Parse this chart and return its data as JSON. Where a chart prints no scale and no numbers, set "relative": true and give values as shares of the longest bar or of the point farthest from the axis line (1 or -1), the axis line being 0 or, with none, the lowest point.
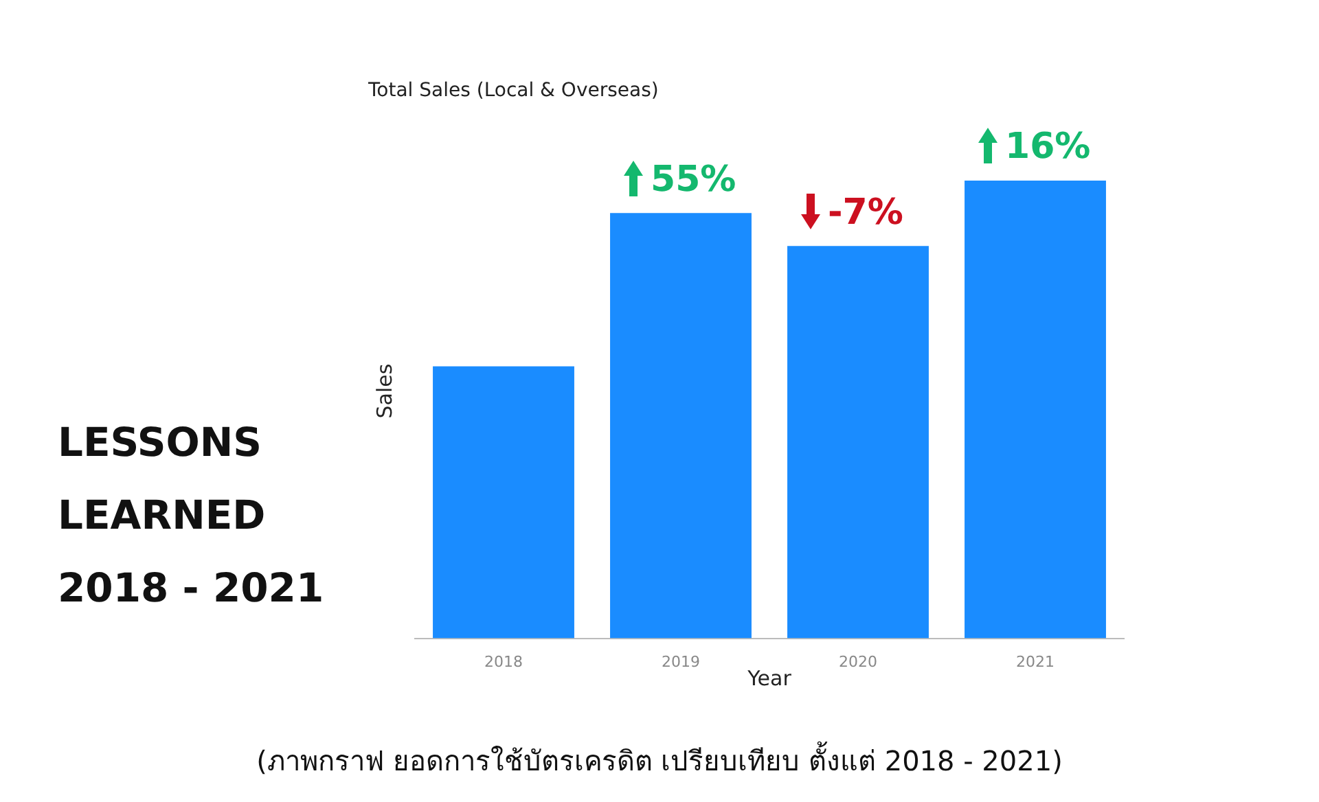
{
  "chart_data": {
    "type": "bar",
    "title": "Total Sales (Local & Overseas)",
    "xlabel": "Year",
    "ylabel": "Sales",
    "categories": [
      "2018",
      "2019",
      "2020",
      "2021"
    ],
    "values": [
      0.594,
      0.929,
      0.857,
      1
    ],
    "color": "#1a8cff",
    "relative": true,
    "grid": false,
    "legend": false,
    "annotations": [
      "LESSONS LEARNED",
      "2018 - 2021",
      "(ภาพกราฟ ยอดการใช้บัตรเครดิต เปรียบเทียบ ตั้งแต่ 2018 - 2021)",
      {
        "text": "55%",
        "x": "2019",
        "y": 0.929
      },
      {
        "text": "-7%",
        "x": "2020",
        "y": 0.857
      },
      {
        "text": "16%",
        "x": "2021",
        "y": 1
      }
    ]
  }
}
